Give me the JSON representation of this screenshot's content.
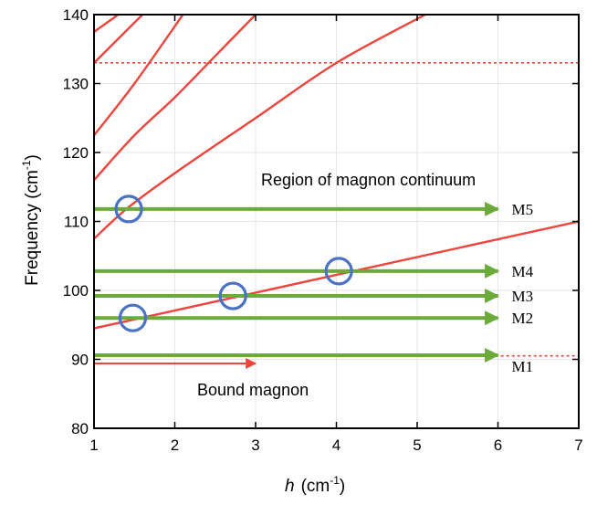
{
  "chart_data": {
    "type": "line",
    "xlabel_var": "h",
    "xlabel_unit": "(cm",
    "xlabel_exp": "-1",
    "xlabel_close": ")",
    "ylabel_main": "Frequency  (cm",
    "ylabel_exp": "-1",
    "ylabel_close": ")",
    "xlim": [
      1,
      7
    ],
    "ylim": [
      80,
      140
    ],
    "x_ticks": [
      1,
      2,
      3,
      4,
      5,
      6,
      7
    ],
    "y_ticks": [
      80,
      90,
      100,
      110,
      120,
      130,
      140
    ],
    "grid": true,
    "continuum_curves": [
      {
        "x": [
          1,
          1.3
        ],
        "y": [
          137.5,
          140
        ]
      },
      {
        "x": [
          1,
          1.6
        ],
        "y": [
          133,
          140
        ]
      },
      {
        "x": [
          1,
          1.5,
          2.1
        ],
        "y": [
          122.5,
          130,
          140
        ]
      },
      {
        "x": [
          1,
          1.5,
          2,
          2.5,
          3.0
        ],
        "y": [
          116,
          122.5,
          128,
          134,
          140
        ]
      },
      {
        "x": [
          1,
          1.4,
          2,
          3,
          4,
          5.1
        ],
        "y": [
          107.5,
          111.8,
          117,
          125,
          133,
          140
        ]
      }
    ],
    "bound_line": {
      "x": [
        1,
        7
      ],
      "y": [
        94.5,
        110
      ]
    },
    "continuum_edge": 133,
    "bound_edge": 90.5,
    "mode_arrows": [
      {
        "label": "M5",
        "y": 111.8
      },
      {
        "label": "M4",
        "y": 102.8
      },
      {
        "label": "M3",
        "y": 99.2
      },
      {
        "label": "M2",
        "y": 96
      },
      {
        "label": "M1",
        "y": 90.6
      }
    ],
    "bound_arrow": {
      "y": 89.4,
      "x_end": 3.0
    },
    "circles": [
      {
        "x": 1.43,
        "y": 111.8
      },
      {
        "x": 1.48,
        "y": 96.0
      },
      {
        "x": 2.72,
        "y": 99.2
      },
      {
        "x": 4.03,
        "y": 102.8
      }
    ],
    "annotations": {
      "continuum": "Region of magnon continuum",
      "bound": "Bound magnon"
    },
    "colors": {
      "curve": "#f0443c",
      "arrow": "#6aab3a",
      "circle": "#4a73c4"
    }
  }
}
